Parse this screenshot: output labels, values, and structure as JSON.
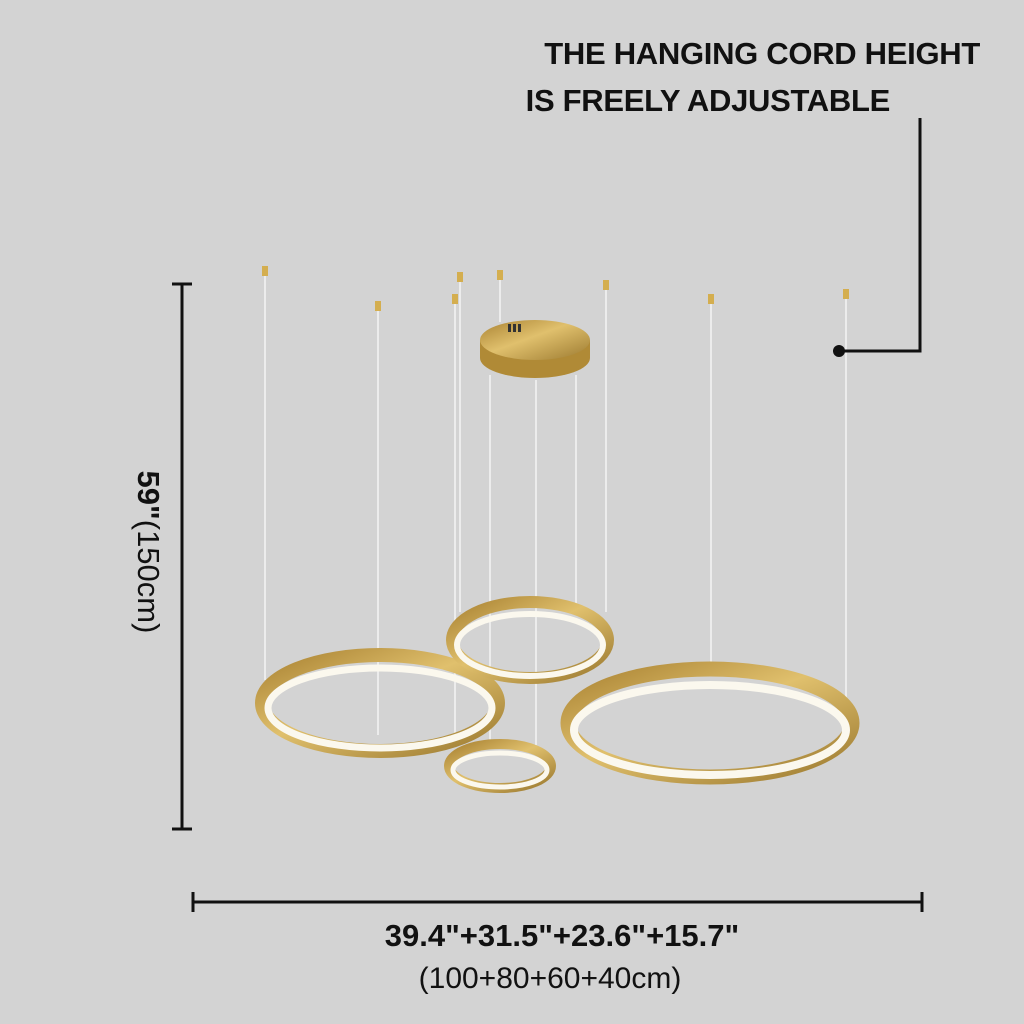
{
  "callout": {
    "line1": "THE HANGING CORD HEIGHT",
    "line2": "IS FREELY ADJUSTABLE"
  },
  "height_dimension": {
    "inches": "59\"",
    "cm": "(150cm)"
  },
  "width_dimension": {
    "inches": "39.4\"+31.5\"+23.6\"+15.7\"",
    "cm": "(100+80+60+40cm)"
  },
  "colors": {
    "background": "#d3d3d3",
    "gold": "#c9a449",
    "light": "#fbf8ee",
    "lines": "#111111"
  }
}
